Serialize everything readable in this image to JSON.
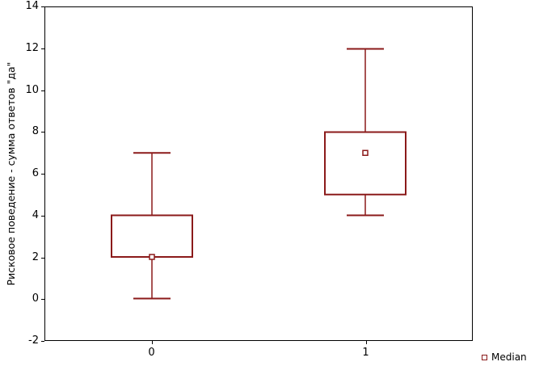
{
  "chart_data": {
    "type": "box",
    "title": "",
    "xlabel": "",
    "ylabel": "Рисковое поведение - сумма ответов \"да\"",
    "ylim": [
      -2,
      14
    ],
    "yticks": [
      -2,
      0,
      2,
      4,
      6,
      8,
      10,
      12,
      14
    ],
    "categories": [
      "0",
      "1"
    ],
    "boxes": [
      {
        "category": "0",
        "median": 2,
        "box_low": 2,
        "box_high": 4,
        "whisker_low": 0,
        "whisker_high": 7
      },
      {
        "category": "1",
        "median": 7,
        "box_low": 5,
        "box_high": 8,
        "whisker_low": 4,
        "whisker_high": 12
      }
    ],
    "legend_position": "bottom-right",
    "grid": false,
    "colors": {
      "box_stroke": "#8b1a1a",
      "whisker_stroke": "#8b1a1a",
      "median_marker_stroke": "#8b1a1a",
      "median_marker_fill": "#ffffff",
      "frame": "#000000",
      "background": "#ffffff"
    }
  },
  "legend": {
    "label": "Median"
  }
}
